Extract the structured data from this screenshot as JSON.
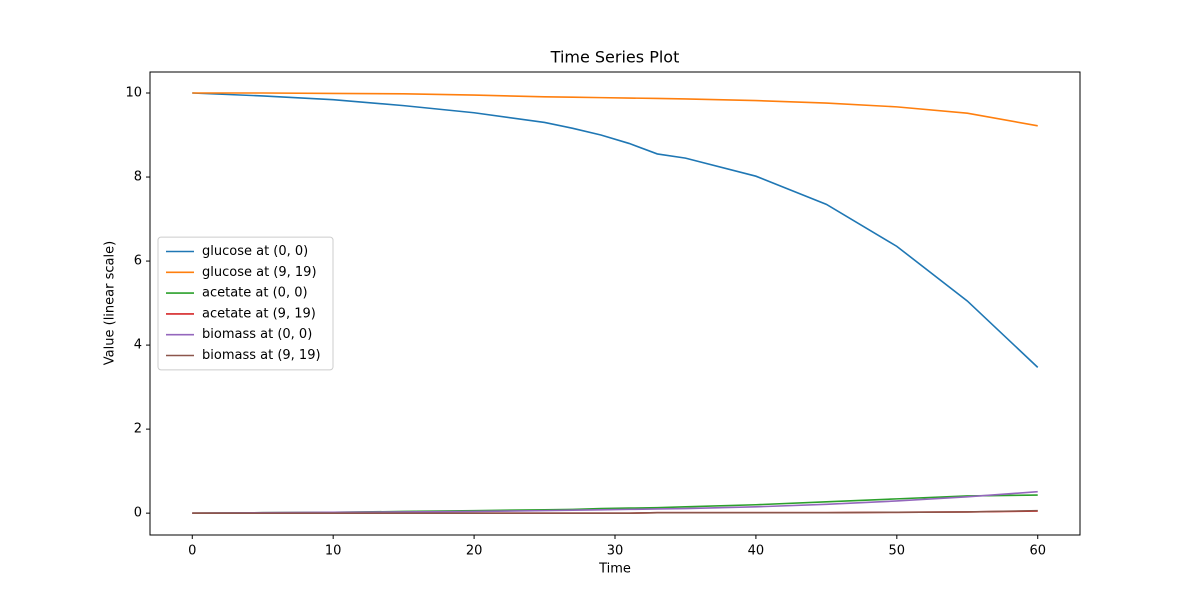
{
  "chart_data": {
    "type": "line",
    "title": "Time Series Plot",
    "x_label": "Time",
    "y_label": "Value (linear scale)",
    "x": [
      0,
      5,
      10,
      15,
      20,
      25,
      27,
      29,
      31,
      33,
      35,
      40,
      45,
      50,
      55,
      60
    ],
    "series": [
      {
        "name": "glucose at (0, 0)",
        "color": "#1f77b4",
        "values": [
          10,
          9.93,
          9.84,
          9.7,
          9.53,
          9.3,
          9.16,
          9.0,
          8.8,
          8.55,
          8.45,
          8.02,
          7.35,
          6.35,
          5.05,
          3.47
        ]
      },
      {
        "name": "glucose at (9, 19)",
        "color": "#ff7f0e",
        "values": [
          10,
          10,
          9.99,
          9.98,
          9.95,
          9.91,
          9.9,
          9.89,
          9.88,
          9.87,
          9.86,
          9.82,
          9.76,
          9.67,
          9.52,
          9.22
        ]
      },
      {
        "name": "acetate at (0, 0)",
        "color": "#2ca02c",
        "values": [
          0,
          0.01,
          0.02,
          0.04,
          0.06,
          0.08,
          0.09,
          0.11,
          0.12,
          0.13,
          0.15,
          0.2,
          0.27,
          0.34,
          0.41,
          0.43
        ]
      },
      {
        "name": "acetate at (9, 19)",
        "color": "#d62728",
        "values": [
          0,
          0,
          0,
          0,
          0,
          0,
          0,
          0,
          0,
          0.01,
          0.01,
          0.01,
          0.01,
          0.02,
          0.03,
          0.05
        ]
      },
      {
        "name": "biomass at (0, 0)",
        "color": "#9467bd",
        "values": [
          0,
          0.01,
          0.02,
          0.03,
          0.04,
          0.06,
          0.07,
          0.08,
          0.09,
          0.1,
          0.11,
          0.15,
          0.21,
          0.29,
          0.39,
          0.51
        ]
      },
      {
        "name": "biomass at (9, 19)",
        "color": "#8c564b",
        "values": [
          0,
          0,
          0,
          0,
          0,
          0,
          0,
          0,
          0,
          0.01,
          0.01,
          0.01,
          0.01,
          0.02,
          0.03,
          0.06
        ]
      }
    ],
    "xlim": [
      -3,
      63
    ],
    "xticks": [
      0,
      10,
      20,
      30,
      40,
      50,
      60
    ],
    "ylim": [
      -0.52,
      10.5
    ],
    "yticks": [
      0,
      2,
      4,
      6,
      8,
      10
    ],
    "legend": "center left",
    "grid": false
  }
}
